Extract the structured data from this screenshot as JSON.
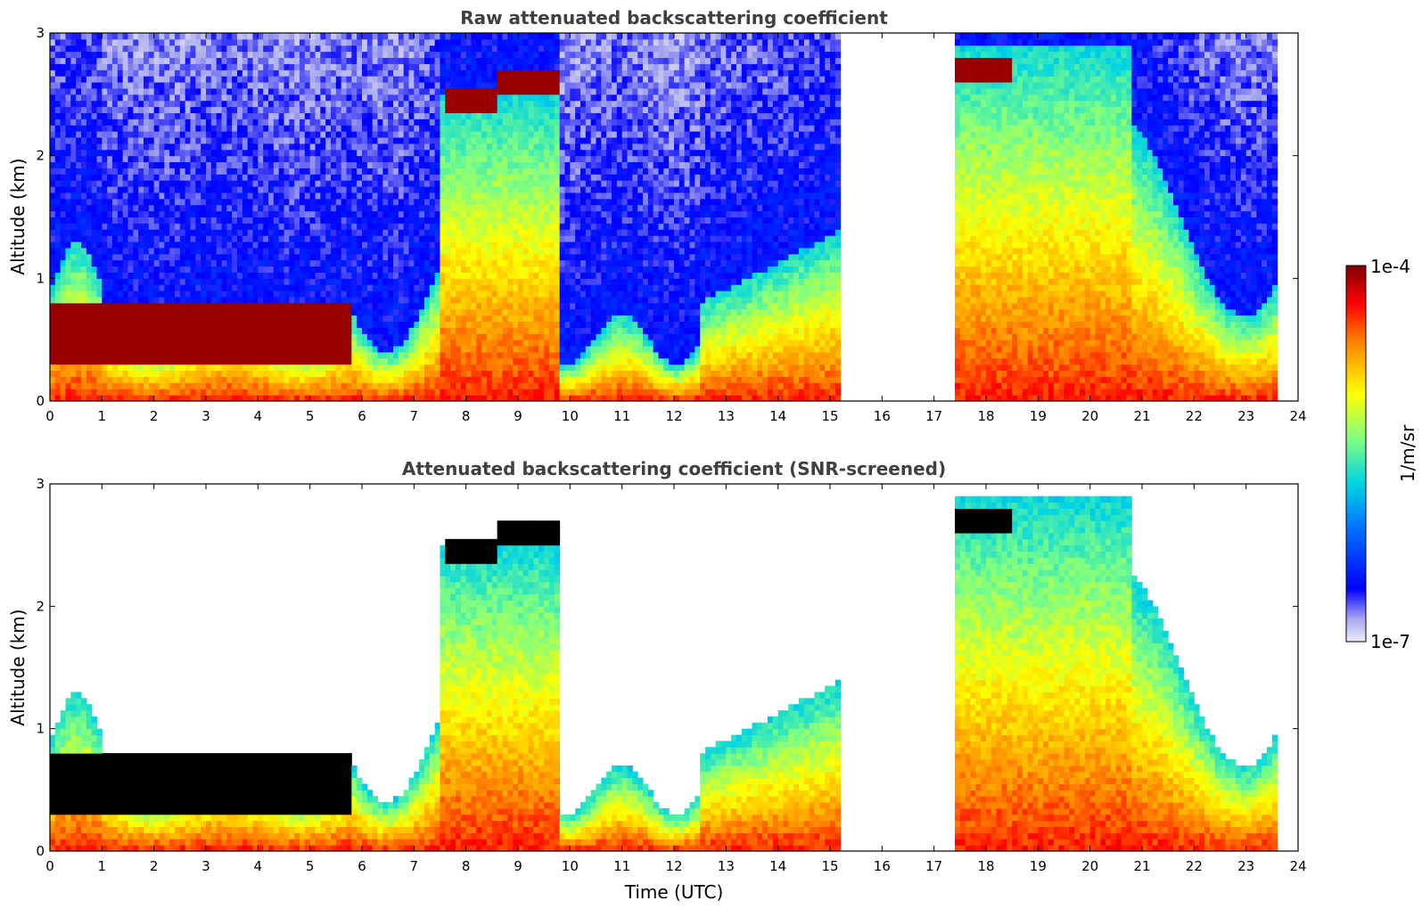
{
  "chart_data": [
    {
      "type": "heatmap",
      "title": "Raw attenuated backscattering coefficient",
      "xlabel": "",
      "ylabel": "Altitude (km)",
      "xlim": [
        0,
        24
      ],
      "ylim": [
        0,
        3
      ],
      "xticks": [
        "0",
        "1",
        "2",
        "3",
        "4",
        "5",
        "6",
        "7",
        "8",
        "9",
        "10",
        "11",
        "12",
        "13",
        "14",
        "15",
        "16",
        "17",
        "18",
        "19",
        "20",
        "21",
        "22",
        "23",
        "24"
      ],
      "yticks": [
        "0",
        "1",
        "2",
        "3"
      ],
      "data_gaps_utc": [
        [
          15.25,
          17.45
        ],
        [
          23.65,
          24
        ]
      ],
      "cloud_layers": [
        {
          "time_utc": [
            0.0,
            5.8
          ],
          "altitude_km": [
            0.3,
            0.8
          ],
          "level": "high"
        },
        {
          "time_utc": [
            7.6,
            8.6
          ],
          "altitude_km": [
            2.35,
            2.55
          ],
          "level": "high"
        },
        {
          "time_utc": [
            8.6,
            9.8
          ],
          "altitude_km": [
            2.5,
            2.72
          ],
          "level": "high"
        },
        {
          "time_utc": [
            17.45,
            18.5
          ],
          "altitude_km": [
            2.6,
            2.8
          ],
          "level": "high"
        }
      ]
    },
    {
      "type": "heatmap",
      "title": "Attenuated backscattering coefficient (SNR-screened)",
      "xlabel": "Time (UTC)",
      "ylabel": "Altitude (km)",
      "xlim": [
        0,
        24
      ],
      "ylim": [
        0,
        3
      ],
      "xticks": [
        "0",
        "1",
        "2",
        "3",
        "4",
        "5",
        "6",
        "7",
        "8",
        "9",
        "10",
        "11",
        "12",
        "13",
        "14",
        "15",
        "16",
        "17",
        "18",
        "19",
        "20",
        "21",
        "22",
        "23",
        "24"
      ],
      "yticks": [
        "0",
        "1",
        "2",
        "3"
      ],
      "data_gaps_utc": [
        [
          15.25,
          17.45
        ],
        [
          23.65,
          24
        ]
      ],
      "cloud_layers": [
        {
          "time_utc": [
            0.0,
            5.8
          ],
          "altitude_km": [
            0.3,
            0.8
          ],
          "level": "saturated"
        },
        {
          "time_utc": [
            7.6,
            8.6
          ],
          "altitude_km": [
            2.35,
            2.55
          ],
          "level": "saturated"
        },
        {
          "time_utc": [
            8.6,
            9.8
          ],
          "altitude_km": [
            2.5,
            2.72
          ],
          "level": "saturated"
        },
        {
          "time_utc": [
            17.45,
            18.5
          ],
          "altitude_km": [
            2.6,
            2.8
          ],
          "level": "saturated"
        }
      ]
    }
  ],
  "colorbar": {
    "label": "1/m/sr",
    "max_label": "1e-4",
    "min_label": "1e-7",
    "scale": "log",
    "colormap": "jet",
    "colors": [
      "#e8e8f6",
      "#aaaaee",
      "#0000ff",
      "#0080ff",
      "#00d0e0",
      "#80ff80",
      "#ffff00",
      "#ff8000",
      "#ff0000",
      "#800000"
    ]
  }
}
